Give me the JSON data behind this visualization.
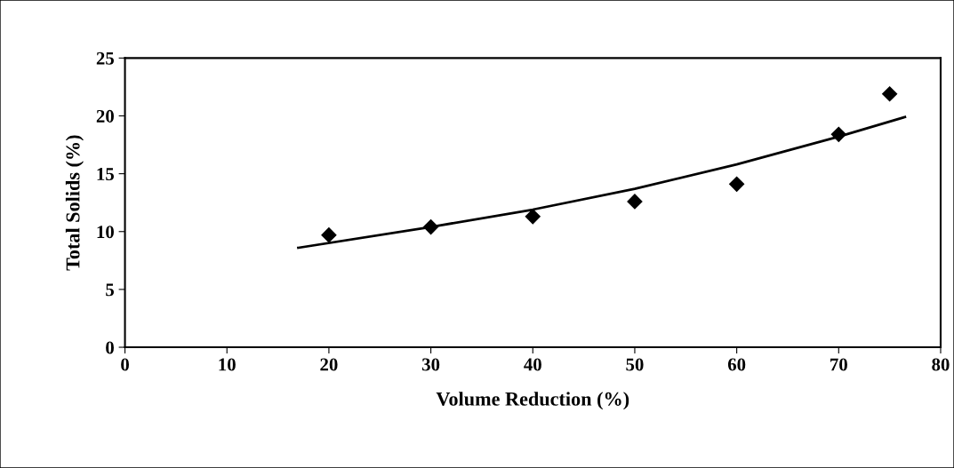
{
  "chart_data": {
    "type": "scatter",
    "xlabel": "Volume Reduction (%)",
    "ylabel": "Total Solids (%)",
    "xlim": [
      0,
      80
    ],
    "xticks": [
      0,
      10,
      20,
      30,
      40,
      50,
      60,
      70,
      80
    ],
    "ylim": [
      0,
      25
    ],
    "yticks": [
      0,
      5,
      10,
      15,
      20,
      25
    ],
    "grid": false,
    "marker": "diamond",
    "series": [
      {
        "type": "scatter",
        "color": "#000000",
        "x": [
          20,
          30,
          40,
          50,
          60,
          70,
          75
        ],
        "values": [
          9.7,
          10.4,
          11.3,
          12.6,
          14.1,
          18.4,
          21.9
        ]
      },
      {
        "type": "line",
        "color": "#000000",
        "marker": "none",
        "x": [
          17,
          30,
          40,
          50,
          60,
          70,
          76.5
        ],
        "values": [
          8.6,
          10.4,
          11.9,
          13.7,
          15.8,
          18.2,
          19.9
        ]
      }
    ]
  }
}
